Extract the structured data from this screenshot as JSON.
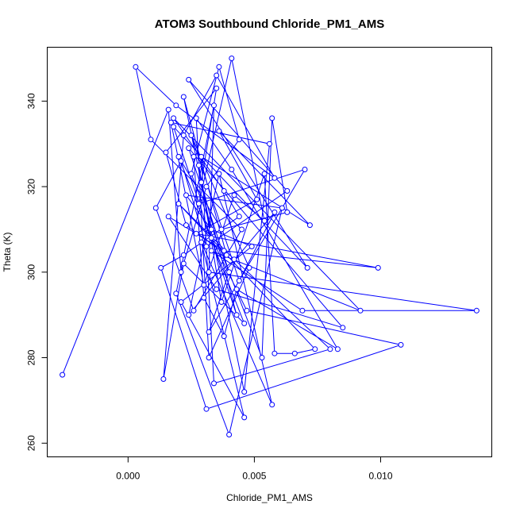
{
  "chart_data": {
    "type": "line",
    "title": "ATOM3 Southbound Chloride_PM1_AMS",
    "xlabel": "Chloride_PM1_AMS",
    "ylabel": "Theta (K)",
    "xlim": [
      -0.0032,
      0.0144
    ],
    "ylim": [
      256.8,
      352.6
    ],
    "xticks": [
      0.0,
      0.005,
      0.01
    ],
    "xtick_labels": [
      "0.000",
      "0.005",
      "0.010"
    ],
    "yticks": [
      260,
      280,
      300,
      320,
      340
    ],
    "ytick_labels": [
      "260",
      "280",
      "300",
      "320",
      "340"
    ],
    "grid": false,
    "legend": "none",
    "marker": "open-circle",
    "color": "#0000ff",
    "series": [
      {
        "x": [
          -0.0026,
          0.0016,
          0.0021,
          0.0031,
          0.0044,
          0.0036,
          0.0025,
          0.0053,
          0.0057,
          0.0063,
          0.0037,
          0.002,
          0.0046,
          0.0022,
          0.0014,
          0.0022,
          0.0035,
          0.0058,
          0.0019,
          0.0003,
          0.0009,
          0.0045,
          0.0026,
          0.0011,
          0.0021,
          0.0031,
          0.0063,
          0.0024,
          0.0071,
          0.0018,
          0.0043,
          0.0029,
          0.0035,
          0.0015,
          0.0023,
          0.0039,
          0.0022,
          0.0046,
          0.0056,
          0.0017,
          0.003,
          0.0042,
          0.0054,
          0.0041,
          0.0028,
          0.007,
          0.0032,
          0.004,
          0.0024,
          0.0085,
          0.0035,
          0.0016,
          0.0038,
          0.0099,
          0.0027,
          0.0051,
          0.0036,
          0.0072,
          0.0029,
          0.0034,
          0.008,
          0.0042,
          0.002,
          0.0074,
          0.0066,
          0.0058,
          0.0054,
          0.0037,
          0.0028,
          0.0033,
          0.0047,
          0.0108,
          0.0031,
          0.0013,
          0.0022,
          0.0044,
          0.0038,
          0.0018,
          0.0092,
          0.0033,
          0.0069,
          0.0138,
          0.0032,
          0.0034,
          0.0019,
          0.004,
          0.0061,
          0.0023,
          0.0033,
          0.0049,
          0.0021,
          0.0046,
          0.0029,
          0.0057,
          0.0036,
          0.0024,
          0.0058,
          0.0044,
          0.0025,
          0.0048,
          0.0032,
          0.0027,
          0.0041,
          0.0083,
          0.0043,
          0.0038,
          0.003,
          0.0026
        ],
        "y": [
          276,
          338,
          300,
          320,
          331,
          348,
          323,
          280,
          336,
          314,
          310,
          327,
          288,
          302,
          275,
          332,
          346,
          322,
          339,
          348,
          331,
          310,
          291,
          315,
          326,
          306,
          319,
          345,
          301,
          334,
          290,
          321,
          343,
          328,
          311,
          304,
          341,
          272,
          330,
          335,
          297,
          318,
          312,
          350,
          316,
          324,
          286,
          300,
          329,
          287,
          296,
          313,
          305,
          301,
          309,
          317,
          333,
          311,
          327,
          274,
          282,
          303,
          316,
          282,
          281,
          281,
          323,
          293,
          325,
          308,
          291,
          283,
          268,
          301,
          304,
          313,
          319,
          336,
          291,
          305,
          291,
          291,
          300,
          339,
          295,
          262,
          315,
          318,
          310,
          306,
          293,
          266,
          307,
          269,
          323,
          290,
          314,
          298,
          332,
          301,
          280,
          336,
          324,
          282,
          296,
          285,
          294,
          327
        ]
      }
    ]
  }
}
